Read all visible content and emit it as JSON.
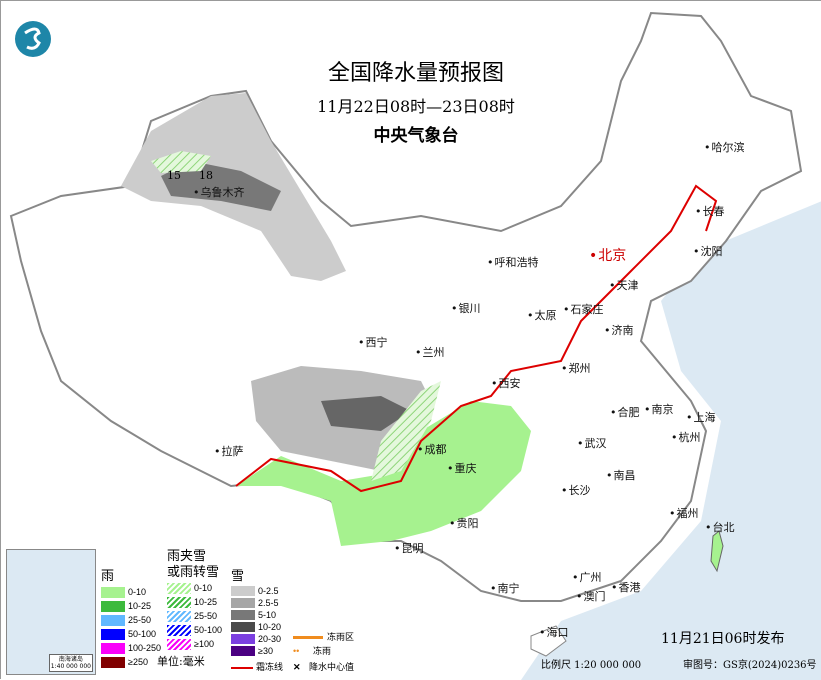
{
  "title": "全国降水量预报图",
  "period": "11月22日08时—23日08时",
  "agency": "中央气象台",
  "issue_time": "11月21日06时发布",
  "scale": "比例尺 1:20 000 000",
  "review_no": "审图号：GS京(2024)0236号",
  "inset_caption": [
    "南海诸岛",
    "1:40 000 000"
  ],
  "precip_centers": [
    {
      "value": "15"
    },
    {
      "value": "18"
    }
  ],
  "cities": [
    "乌鲁木齐",
    "哈尔滨",
    "长春",
    "沈阳",
    "北京",
    "天津",
    "呼和浩特",
    "石家庄",
    "太原",
    "济南",
    "银川",
    "西宁",
    "兰州",
    "郑州",
    "西安",
    "合肥",
    "南京",
    "上海",
    "杭州",
    "武汉",
    "成都",
    "重庆",
    "拉萨",
    "南昌",
    "长沙",
    "福州",
    "台北",
    "贵阳",
    "昆明",
    "南宁",
    "广州",
    "澳门",
    "香港",
    "海口"
  ],
  "legend": {
    "rain": {
      "title": "雨",
      "items": [
        {
          "label": "0-10",
          "color": "#a6f28f"
        },
        {
          "label": "10-25",
          "color": "#3dba3d"
        },
        {
          "label": "25-50",
          "color": "#61b8ff"
        },
        {
          "label": "50-100",
          "color": "#0000ff"
        },
        {
          "label": "100-250",
          "color": "#fa00fa"
        },
        {
          "label": "≥250",
          "color": "#800000"
        }
      ]
    },
    "sleet": {
      "title": "雨夹雪\n或雨转雪",
      "items": [
        {
          "label": "0-10",
          "color": "#a6f28f"
        },
        {
          "label": "10-25",
          "color": "#3dba3d"
        },
        {
          "label": "25-50",
          "color": "#61b8ff"
        },
        {
          "label": "50-100",
          "color": "#0000ff"
        },
        {
          "label": "≥100",
          "color": "#fa00fa"
        }
      ]
    },
    "snow": {
      "title": "雪",
      "items": [
        {
          "label": "0-2.5",
          "color": "#cccccc"
        },
        {
          "label": "2.5-5",
          "color": "#a6a6a6"
        },
        {
          "label": "5-10",
          "color": "#787878"
        },
        {
          "label": "10-20",
          "color": "#4a4a4a"
        },
        {
          "label": "20-30",
          "color": "#7b3fe0"
        },
        {
          "label": "≥30",
          "color": "#4b0082"
        }
      ]
    },
    "unit": "单位:毫米",
    "freezing_rain_area": "冻雨区",
    "freezing_rain": "冻雨",
    "frost_line": "霜冻线",
    "center_value": "降水中心值"
  }
}
